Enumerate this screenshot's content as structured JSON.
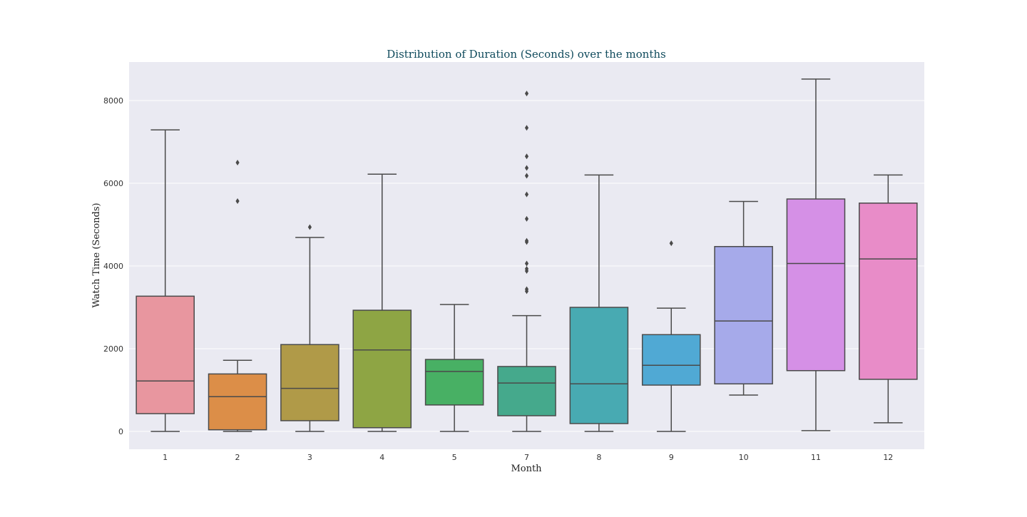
{
  "chart_data": {
    "type": "boxplot",
    "title": "Distribution of Duration (Seconds) over the months",
    "xlabel": "Month",
    "ylabel": "Watch Time (Seconds)",
    "ylim": [
      -420,
      8900
    ],
    "y_ticks": [
      0,
      2000,
      4000,
      6000,
      8000
    ],
    "grid": true,
    "categories": [
      "1",
      "2",
      "3",
      "4",
      "5",
      "7",
      "8",
      "9",
      "10",
      "11",
      "12"
    ],
    "boxes": [
      {
        "category": "1",
        "whisker_low": 0,
        "q1": 430,
        "median": 1220,
        "q3": 3270,
        "whisker_high": 7290,
        "outliers": [],
        "color": "#e8969f"
      },
      {
        "category": "2",
        "whisker_low": 0,
        "q1": 40,
        "median": 840,
        "q3": 1390,
        "whisker_high": 1720,
        "outliers": [
          5570,
          6500
        ],
        "color": "#dc8e48"
      },
      {
        "category": "3",
        "whisker_low": 0,
        "q1": 260,
        "median": 1040,
        "q3": 2100,
        "whisker_high": 4690,
        "outliers": [
          4940
        ],
        "color": "#b09a48"
      },
      {
        "category": "4",
        "whisker_low": 0,
        "q1": 90,
        "median": 1970,
        "q3": 2930,
        "whisker_high": 6220,
        "outliers": [],
        "color": "#8ea544"
      },
      {
        "category": "5",
        "whisker_low": 0,
        "q1": 640,
        "median": 1450,
        "q3": 1740,
        "whisker_high": 3070,
        "outliers": [],
        "color": "#48b064"
      },
      {
        "category": "7",
        "whisker_low": 0,
        "q1": 380,
        "median": 1170,
        "q3": 1570,
        "whisker_high": 2800,
        "outliers": [
          3390,
          3440,
          3880,
          3930,
          4060,
          4580,
          4610,
          5140,
          5730,
          6180,
          6370,
          6650,
          7340,
          8170
        ],
        "color": "#45a98c"
      },
      {
        "category": "8",
        "whisker_low": 0,
        "q1": 190,
        "median": 1150,
        "q3": 3000,
        "whisker_high": 6200,
        "outliers": [],
        "color": "#48aab2"
      },
      {
        "category": "9",
        "whisker_low": 0,
        "q1": 1120,
        "median": 1600,
        "q3": 2340,
        "whisker_high": 2980,
        "outliers": [
          4550
        ],
        "color": "#50a9d4"
      },
      {
        "category": "10",
        "whisker_low": 880,
        "q1": 1150,
        "median": 2670,
        "q3": 4470,
        "whisker_high": 5560,
        "outliers": [],
        "color": "#a6aaea"
      },
      {
        "category": "11",
        "whisker_low": 20,
        "q1": 1470,
        "median": 4060,
        "q3": 5620,
        "whisker_high": 8520,
        "outliers": [],
        "color": "#d590e6"
      },
      {
        "category": "12",
        "whisker_low": 210,
        "q1": 1260,
        "median": 4170,
        "q3": 5520,
        "whisker_high": 6200,
        "outliers": [],
        "color": "#e88cc8"
      }
    ],
    "colors": {
      "plot_background": "#eaeaf2",
      "grid": "#ffffff",
      "box_edge": "#4a4a4a",
      "title_color": "#0f4a5c"
    }
  }
}
